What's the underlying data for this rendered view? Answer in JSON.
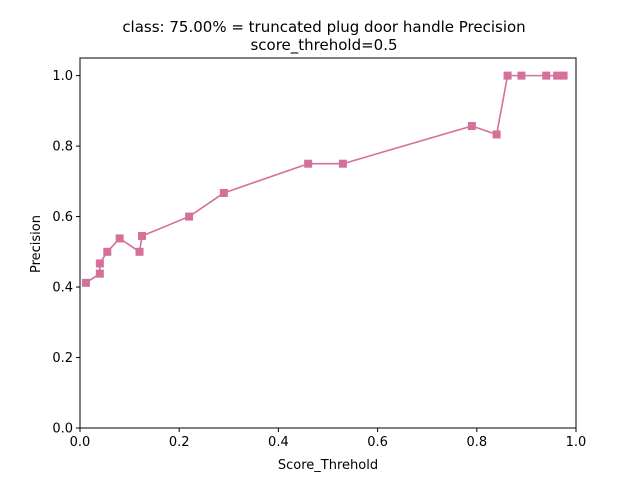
{
  "chart_data": {
    "type": "line",
    "title": "class: 75.00% = truncated plug door handle Precision",
    "subtitle": "score_threhold=0.5",
    "xlabel": "Score_Threhold",
    "ylabel": "Precision",
    "xlim": [
      0.0,
      1.0
    ],
    "ylim": [
      0.0,
      1.05
    ],
    "xticks": [
      0.0,
      0.2,
      0.4,
      0.6,
      0.8,
      1.0
    ],
    "xtick_labels": [
      "0.0",
      "0.2",
      "0.4",
      "0.6",
      "0.8",
      "1.0"
    ],
    "yticks": [
      0.0,
      0.2,
      0.4,
      0.6,
      0.8,
      1.0
    ],
    "ytick_labels": [
      "0.0",
      "0.2",
      "0.4",
      "0.6",
      "0.8",
      "1.0"
    ],
    "grid": false,
    "marker": "square",
    "color": "#d4709a",
    "series": [
      {
        "x": [
          0.012,
          0.04,
          0.04,
          0.055,
          0.08,
          0.12,
          0.125,
          0.22,
          0.29,
          0.46,
          0.53,
          0.79,
          0.84,
          0.862,
          0.89,
          0.94,
          0.962,
          0.975
        ],
        "y": [
          0.412,
          0.438,
          0.467,
          0.5,
          0.538,
          0.5,
          0.545,
          0.6,
          0.667,
          0.75,
          0.75,
          0.857,
          0.833,
          1.0,
          1.0,
          1.0,
          1.0,
          1.0
        ]
      }
    ]
  }
}
